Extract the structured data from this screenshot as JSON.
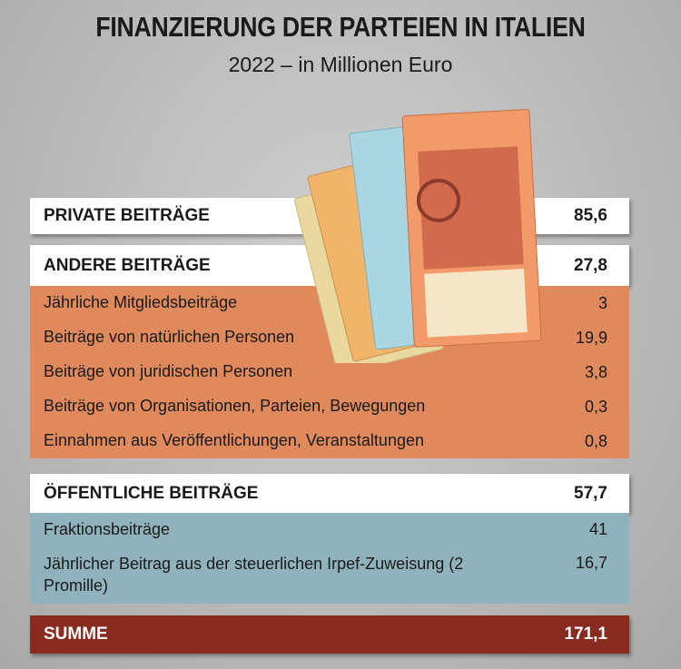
{
  "header": {
    "title": "FINANZIERUNG DER PARTEIEN IN ITALIEN",
    "subtitle": "2022 – in Millionen Euro"
  },
  "table": {
    "private": {
      "label": "PRIVATE BEITRÄGE",
      "value": "85,6"
    },
    "andere": {
      "label": "ANDERE BEITRÄGE",
      "value": "27,8",
      "rows": [
        [
          "Jährliche Mitgliedsbeiträge",
          "3"
        ],
        [
          "Beiträge von natürlichen Personen",
          "19,9"
        ],
        [
          "Beiträge von juridischen Personen",
          "3,8"
        ],
        [
          "Beiträge von Organisationen, Parteien, Bewegungen",
          "0,3"
        ],
        [
          "Einnahmen aus Veröffentlichungen, Veranstaltungen",
          "0,8"
        ]
      ]
    },
    "oeffentliche": {
      "label": "ÖFFENTLICHE BEITRÄGE",
      "value": "57,7",
      "rows": [
        [
          "Fraktionsbeiträge",
          "41"
        ],
        [
          "Jährlicher Beitrag aus der steuerlichen Irpef-Zuweisung (2 Promille)",
          "16,7"
        ]
      ]
    },
    "summe": {
      "label": "SUMME",
      "value": "171,1"
    }
  }
}
